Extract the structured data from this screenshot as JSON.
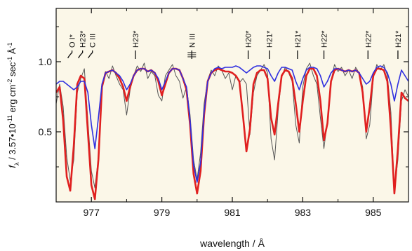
{
  "chart_data": {
    "type": "line",
    "xlabel": "wavelength / Å",
    "ylabel": "f_λ / 3.57•10^-11 erg cm^-2 sec^-1 Å^-1",
    "xlim": [
      976.0,
      986.0
    ],
    "ylim": [
      0.0,
      1.38
    ],
    "xticks": [
      977,
      979,
      981,
      983,
      985
    ],
    "yticks": [
      0.5,
      1.0
    ],
    "grid": false,
    "background": "#fbf7e8",
    "colors": {
      "observed": "#555555",
      "red_model": "#e02020",
      "blue_model": "#2f2fe0"
    },
    "series": [
      {
        "key": "observed",
        "x": [
          976.0,
          976.1,
          976.2,
          976.3,
          976.4,
          976.5,
          976.6,
          976.7,
          976.8,
          976.9,
          977.0,
          977.1,
          977.2,
          977.3,
          977.4,
          977.5,
          977.6,
          977.7,
          977.8,
          977.9,
          978.0,
          978.1,
          978.2,
          978.3,
          978.4,
          978.5,
          978.6,
          978.7,
          978.8,
          978.9,
          979.0,
          979.1,
          979.2,
          979.3,
          979.4,
          979.5,
          979.6,
          979.7,
          979.8,
          979.9,
          980.0,
          980.1,
          980.2,
          980.3,
          980.4,
          980.5,
          980.6,
          980.7,
          980.8,
          980.9,
          981.0,
          981.1,
          981.2,
          981.3,
          981.4,
          981.5,
          981.6,
          981.7,
          981.8,
          981.9,
          982.0,
          982.1,
          982.2,
          982.3,
          982.4,
          982.5,
          982.6,
          982.7,
          982.8,
          982.9,
          983.0,
          983.1,
          983.2,
          983.3,
          983.4,
          983.5,
          983.6,
          983.7,
          983.8,
          983.9,
          984.0,
          984.1,
          984.2,
          984.3,
          984.4,
          984.5,
          984.6,
          984.7,
          984.8,
          984.9,
          985.0,
          985.1,
          985.2,
          985.3,
          985.4,
          985.5,
          985.6,
          985.7,
          985.8,
          985.9,
          986.0
        ],
        "y": [
          0.7,
          0.84,
          0.68,
          0.32,
          0.15,
          0.3,
          0.78,
          0.88,
          0.95,
          0.58,
          0.22,
          0.1,
          0.32,
          0.82,
          0.93,
          0.88,
          0.97,
          0.9,
          0.84,
          0.8,
          0.62,
          0.8,
          0.9,
          0.97,
          0.93,
          0.99,
          0.88,
          0.93,
          0.9,
          0.76,
          0.72,
          0.9,
          0.94,
          0.98,
          0.9,
          0.86,
          0.74,
          0.82,
          0.62,
          0.3,
          0.16,
          0.35,
          0.7,
          0.87,
          0.94,
          0.9,
          0.97,
          0.94,
          0.88,
          0.92,
          0.8,
          0.9,
          0.85,
          0.88,
          0.84,
          0.48,
          0.78,
          0.9,
          0.94,
          0.98,
          0.92,
          0.45,
          0.3,
          0.65,
          0.89,
          0.96,
          0.92,
          0.86,
          0.55,
          0.42,
          0.82,
          0.95,
          0.99,
          0.9,
          0.84,
          0.6,
          0.38,
          0.58,
          0.86,
          0.98,
          0.93,
          0.96,
          0.9,
          0.94,
          0.88,
          0.96,
          0.92,
          0.82,
          0.45,
          0.55,
          0.88,
          0.98,
          0.94,
          0.98,
          0.9,
          0.64,
          0.08,
          0.3,
          0.72,
          0.8,
          0.75
        ]
      },
      {
        "key": "red_model",
        "x": [
          976.0,
          976.1,
          976.2,
          976.3,
          976.4,
          976.5,
          976.6,
          976.7,
          976.8,
          976.9,
          977.0,
          977.1,
          977.2,
          977.3,
          977.4,
          977.5,
          977.6,
          977.7,
          977.8,
          977.9,
          978.0,
          978.1,
          978.2,
          978.3,
          978.4,
          978.5,
          978.6,
          978.7,
          978.8,
          978.9,
          979.0,
          979.1,
          979.2,
          979.3,
          979.4,
          979.5,
          979.6,
          979.7,
          979.8,
          979.9,
          980.0,
          980.1,
          980.2,
          980.3,
          980.4,
          980.5,
          980.6,
          980.7,
          980.8,
          980.9,
          981.0,
          981.1,
          981.2,
          981.3,
          981.4,
          981.5,
          981.6,
          981.7,
          981.8,
          981.9,
          982.0,
          982.1,
          982.2,
          982.3,
          982.4,
          982.5,
          982.6,
          982.7,
          982.8,
          982.9,
          983.0,
          983.1,
          983.2,
          983.3,
          983.4,
          983.5,
          983.6,
          983.7,
          983.8,
          983.9,
          984.0,
          984.1,
          984.2,
          984.3,
          984.4,
          984.5,
          984.6,
          984.7,
          984.8,
          984.9,
          985.0,
          985.1,
          985.2,
          985.3,
          985.4,
          985.5,
          985.6,
          985.7,
          985.8,
          985.9,
          986.0
        ],
        "y": [
          0.78,
          0.82,
          0.58,
          0.18,
          0.08,
          0.4,
          0.84,
          0.9,
          0.88,
          0.5,
          0.12,
          0.02,
          0.3,
          0.82,
          0.92,
          0.93,
          0.94,
          0.92,
          0.88,
          0.82,
          0.72,
          0.82,
          0.9,
          0.94,
          0.95,
          0.95,
          0.93,
          0.94,
          0.92,
          0.86,
          0.76,
          0.84,
          0.92,
          0.95,
          0.95,
          0.94,
          0.88,
          0.8,
          0.55,
          0.2,
          0.06,
          0.22,
          0.62,
          0.86,
          0.92,
          0.94,
          0.95,
          0.94,
          0.93,
          0.93,
          0.92,
          0.9,
          0.86,
          0.62,
          0.36,
          0.52,
          0.84,
          0.92,
          0.94,
          0.94,
          0.88,
          0.6,
          0.48,
          0.7,
          0.9,
          0.94,
          0.93,
          0.88,
          0.7,
          0.5,
          0.72,
          0.9,
          0.95,
          0.95,
          0.9,
          0.72,
          0.44,
          0.56,
          0.86,
          0.94,
          0.95,
          0.94,
          0.93,
          0.94,
          0.93,
          0.94,
          0.92,
          0.78,
          0.5,
          0.68,
          0.9,
          0.95,
          0.95,
          0.94,
          0.86,
          0.52,
          0.06,
          0.38,
          0.78,
          0.74,
          0.72
        ]
      },
      {
        "key": "blue_model",
        "x": [
          976.0,
          976.1,
          976.2,
          976.3,
          976.4,
          976.5,
          976.6,
          976.7,
          976.8,
          976.9,
          977.0,
          977.1,
          977.2,
          977.3,
          977.4,
          977.5,
          977.6,
          977.7,
          977.8,
          977.9,
          978.0,
          978.1,
          978.2,
          978.3,
          978.4,
          978.5,
          978.6,
          978.7,
          978.8,
          978.9,
          979.0,
          979.1,
          979.2,
          979.3,
          979.4,
          979.5,
          979.6,
          979.7,
          979.8,
          979.9,
          980.0,
          980.1,
          980.2,
          980.3,
          980.4,
          980.5,
          980.6,
          980.7,
          980.8,
          980.9,
          981.0,
          981.1,
          981.2,
          981.3,
          981.4,
          981.5,
          981.6,
          981.7,
          981.8,
          981.9,
          982.0,
          982.1,
          982.2,
          982.3,
          982.4,
          982.5,
          982.6,
          982.7,
          982.8,
          982.9,
          983.0,
          983.1,
          983.2,
          983.3,
          983.4,
          983.5,
          983.6,
          983.7,
          983.8,
          983.9,
          984.0,
          984.1,
          984.2,
          984.3,
          984.4,
          984.5,
          984.6,
          984.7,
          984.8,
          984.9,
          985.0,
          985.1,
          985.2,
          985.3,
          985.4,
          985.5,
          985.6,
          985.7,
          985.8,
          985.9,
          986.0
        ],
        "y": [
          0.84,
          0.86,
          0.86,
          0.84,
          0.82,
          0.8,
          0.82,
          0.86,
          0.86,
          0.78,
          0.55,
          0.38,
          0.6,
          0.84,
          0.92,
          0.93,
          0.94,
          0.92,
          0.9,
          0.86,
          0.8,
          0.84,
          0.9,
          0.94,
          0.95,
          0.95,
          0.93,
          0.94,
          0.92,
          0.88,
          0.8,
          0.86,
          0.92,
          0.95,
          0.95,
          0.94,
          0.88,
          0.82,
          0.58,
          0.26,
          0.14,
          0.28,
          0.64,
          0.86,
          0.92,
          0.95,
          0.96,
          0.95,
          0.96,
          0.96,
          0.96,
          0.97,
          0.96,
          0.94,
          0.92,
          0.94,
          0.96,
          0.97,
          0.97,
          0.96,
          0.95,
          0.9,
          0.86,
          0.92,
          0.96,
          0.96,
          0.95,
          0.94,
          0.86,
          0.8,
          0.88,
          0.94,
          0.96,
          0.96,
          0.95,
          0.9,
          0.82,
          0.86,
          0.92,
          0.95,
          0.95,
          0.94,
          0.93,
          0.94,
          0.93,
          0.94,
          0.92,
          0.88,
          0.84,
          0.86,
          0.92,
          0.96,
          0.97,
          0.96,
          0.92,
          0.84,
          0.72,
          0.84,
          0.94,
          0.9,
          0.86
        ]
      }
    ],
    "line_ids": [
      {
        "label": "O I*",
        "x": 976.45,
        "tick": "curve"
      },
      {
        "label": "H23*",
        "x": 976.75,
        "tick": "curve"
      },
      {
        "label": "C III",
        "x": 977.03,
        "tick": "curve"
      },
      {
        "label": "H23*",
        "x": 978.25,
        "tick": "straight"
      },
      {
        "label": "N III",
        "x": 979.85,
        "tick": "multiplet"
      },
      {
        "label": "H20*",
        "x": 981.45,
        "tick": "straight"
      },
      {
        "label": "H21*",
        "x": 982.05,
        "tick": "straight"
      },
      {
        "label": "H21*",
        "x": 982.85,
        "tick": "straight"
      },
      {
        "label": "H22*",
        "x": 983.6,
        "tick": "straight"
      },
      {
        "label": "H22*",
        "x": 984.85,
        "tick": "straight"
      },
      {
        "label": "H21*",
        "x": 985.7,
        "tick": "straight"
      }
    ]
  }
}
